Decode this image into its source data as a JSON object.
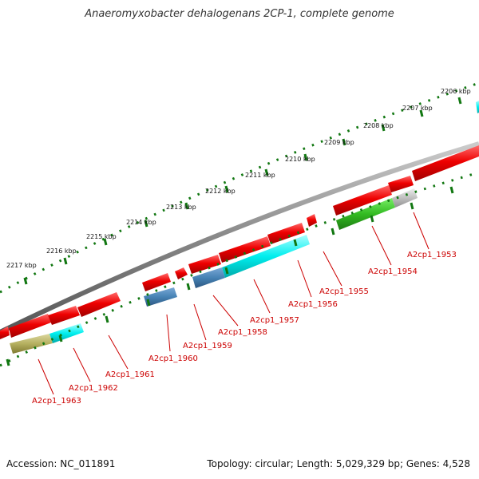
{
  "title": "Anaeromyxobacter dehalogenans 2CP-1, complete genome",
  "footer": {
    "accession": "Accession: NC_011891",
    "summary": "Topology: circular; Length: 5,029,329 bp; Genes: 4,528"
  },
  "scale_labels": [
    "2206 kbp",
    "2207 kbp",
    "2208 kbp",
    "2209 kbp",
    "2210 kbp",
    "2211 kbp",
    "2212 kbp",
    "2213 kbp",
    "2214 kbp",
    "2215 kbp",
    "2216 kbp",
    "2217 kbp"
  ],
  "gene_labels": [
    "A2cp1_1953",
    "A2cp1_1954",
    "A2cp1_1955",
    "A2cp1_1956",
    "A2cp1_1957",
    "A2cp1_1958",
    "A2cp1_1959",
    "A2cp1_1960",
    "A2cp1_1961",
    "A2cp1_1962",
    "A2cp1_1963"
  ],
  "colors": {
    "forward_gene": "#ee0000",
    "cds_cyan": "#00e5ee",
    "cds_steelblue": "#4682b4",
    "cds_green": "#33bb22",
    "cds_gray": "#c0c0c0",
    "cds_olive": "#b5b060",
    "backbone": "#888888",
    "ticks": "#117711",
    "label": "#cc0000"
  }
}
